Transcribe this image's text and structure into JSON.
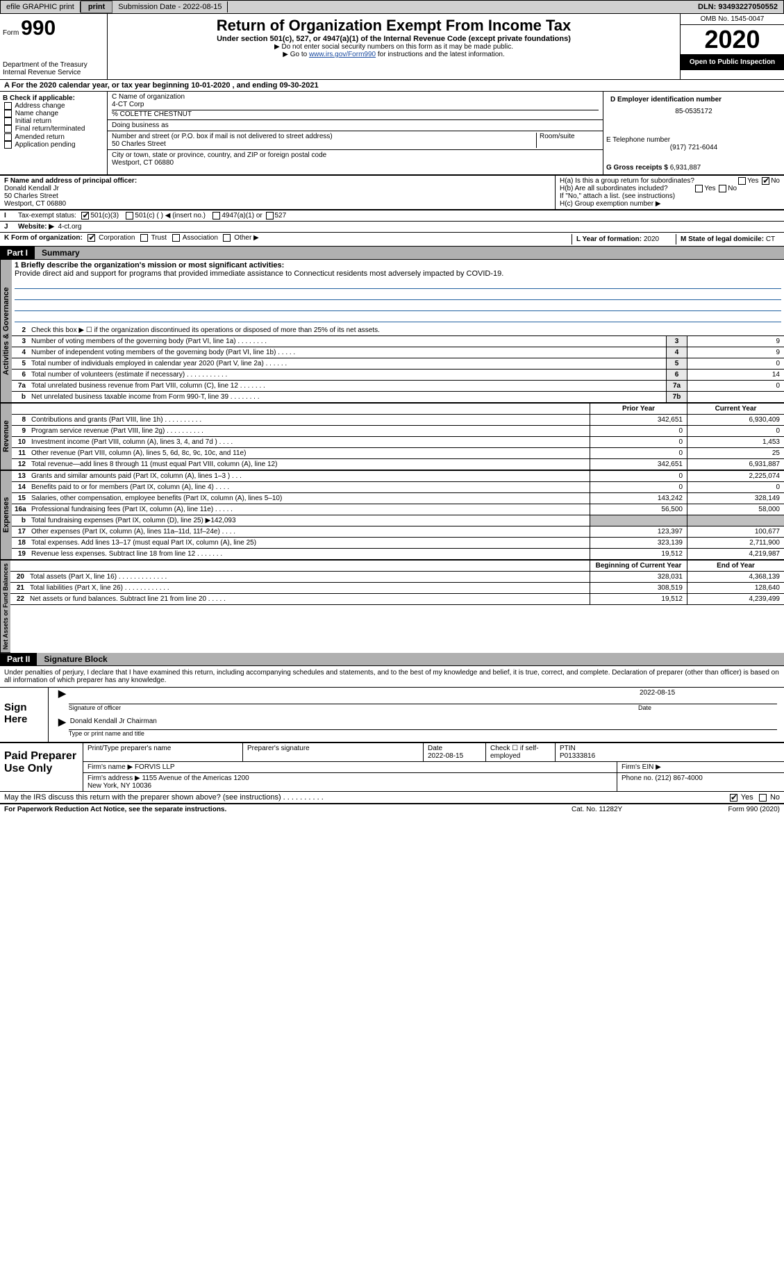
{
  "topbar": {
    "efile": "efile GRAPHIC print",
    "submission": "Submission Date - 2022-08-15",
    "dln": "DLN: 93493227050552"
  },
  "header": {
    "form_label": "Form",
    "form_num": "990",
    "dept": "Department of the Treasury\nInternal Revenue Service",
    "title": "Return of Organization Exempt From Income Tax",
    "subtitle": "Under section 501(c), 527, or 4947(a)(1) of the Internal Revenue Code (except private foundations)",
    "note1": "▶ Do not enter social security numbers on this form as it may be made public.",
    "note2_pre": "▶ Go to ",
    "note2_link": "www.irs.gov/Form990",
    "note2_post": " for instructions and the latest information.",
    "omb": "OMB No. 1545-0047",
    "year": "2020",
    "open": "Open to Public Inspection"
  },
  "section_a": "A For the 2020 calendar year, or tax year beginning 10-01-2020    , and ending 09-30-2021",
  "box_b": {
    "label": "B Check if applicable:",
    "opts": [
      "Address change",
      "Name change",
      "Initial return",
      "Final return/terminated",
      "Amended return",
      "Application pending"
    ]
  },
  "box_c": {
    "name_lbl": "C Name of organization",
    "name": "4-CT Corp",
    "care_of": "% COLETTE CHESTNUT",
    "dba_lbl": "Doing business as",
    "addr_lbl": "Number and street (or P.O. box if mail is not delivered to street address)",
    "addr": "50 Charles Street",
    "room_lbl": "Room/suite",
    "city_lbl": "City or town, state or province, country, and ZIP or foreign postal code",
    "city": "Westport, CT  06880"
  },
  "box_d": {
    "lbl": "D Employer identification number",
    "val": "85-0535172"
  },
  "box_e": {
    "lbl": "E Telephone number",
    "val": "(917) 721-6044"
  },
  "box_g": {
    "lbl": "G Gross receipts $ ",
    "val": "6,931,887"
  },
  "box_f": {
    "lbl": "F Name and address of principal officer:",
    "name": "Donald Kendall Jr",
    "addr1": "50 Charles Street",
    "addr2": "Westport, CT  06880"
  },
  "box_h": {
    "ha": "H(a)  Is this a group return for subordinates?",
    "hb": "H(b)  Are all subordinates included?",
    "hb_note": "If \"No,\" attach a list. (see instructions)",
    "hc": "H(c)  Group exemption number ▶"
  },
  "tax_status": {
    "lbl": "Tax-exempt status:",
    "o1": "501(c)(3)",
    "o2": "501(c) (  ) ◀ (insert no.)",
    "o3": "4947(a)(1) or",
    "o4": "527"
  },
  "website": {
    "lbl": "Website: ▶",
    "val": "4-ct.org"
  },
  "korg": {
    "lbl": "K Form of organization:",
    "o1": "Corporation",
    "o2": "Trust",
    "o3": "Association",
    "o4": "Other ▶"
  },
  "box_l": {
    "lbl": "L Year of formation: ",
    "val": "2020"
  },
  "box_m": {
    "lbl": "M State of legal domicile: ",
    "val": "CT"
  },
  "part1": {
    "num": "Part I",
    "title": "Summary"
  },
  "mission": {
    "q": "1  Briefly describe the organization's mission or most significant activities:",
    "a": "Provide direct aid and support for programs that provided immediate assistance to Connecticut residents most adversely impacted by COVID-19."
  },
  "lines_gov": [
    {
      "n": "2",
      "t": "Check this box ▶ ☐  if the organization discontinued its operations or disposed of more than 25% of its net assets.",
      "box": "",
      "p": "",
      "c": ""
    },
    {
      "n": "3",
      "t": "Number of voting members of the governing body (Part VI, line 1a)  .    .    .    .    .    .    .    .",
      "box": "3",
      "p": "",
      "c": "9"
    },
    {
      "n": "4",
      "t": "Number of independent voting members of the governing body (Part VI, line 1b)  .    .    .    .    .",
      "box": "4",
      "p": "",
      "c": "9"
    },
    {
      "n": "5",
      "t": "Total number of individuals employed in calendar year 2020 (Part V, line 2a)  .    .    .    .    .    .",
      "box": "5",
      "p": "",
      "c": "0"
    },
    {
      "n": "6",
      "t": "Total number of volunteers (estimate if necessary)  .    .    .    .    .    .    .    .    .    .    .",
      "box": "6",
      "p": "",
      "c": "14"
    },
    {
      "n": "7a",
      "t": "Total unrelated business revenue from Part VIII, column (C), line 12  .    .    .    .    .    .    .",
      "box": "7a",
      "p": "",
      "c": "0"
    },
    {
      "n": "b",
      "t": "Net unrelated business taxable income from Form 990-T, line 39  .    .    .    .    .    .    .    .",
      "box": "7b",
      "p": "",
      "c": ""
    }
  ],
  "col_hdrs": {
    "prior": "Prior Year",
    "curr": "Current Year"
  },
  "lines_rev": [
    {
      "n": "8",
      "t": "Contributions and grants (Part VIII, line 1h)  .    .    .    .    .    .    .    .    .    .",
      "p": "342,651",
      "c": "6,930,409"
    },
    {
      "n": "9",
      "t": "Program service revenue (Part VIII, line 2g)  .    .    .    .    .    .    .    .    .    .",
      "p": "0",
      "c": "0"
    },
    {
      "n": "10",
      "t": "Investment income (Part VIII, column (A), lines 3, 4, and 7d )  .    .    .    .",
      "p": "0",
      "c": "1,453"
    },
    {
      "n": "11",
      "t": "Other revenue (Part VIII, column (A), lines 5, 6d, 8c, 9c, 10c, and 11e)",
      "p": "0",
      "c": "25"
    },
    {
      "n": "12",
      "t": "Total revenue—add lines 8 through 11 (must equal Part VIII, column (A), line 12)",
      "p": "342,651",
      "c": "6,931,887"
    }
  ],
  "lines_exp": [
    {
      "n": "13",
      "t": "Grants and similar amounts paid (Part IX, column (A), lines 1–3 )  .    .    .",
      "p": "0",
      "c": "2,225,074"
    },
    {
      "n": "14",
      "t": "Benefits paid to or for members (Part IX, column (A), line 4)  .    .    .    .",
      "p": "0",
      "c": "0"
    },
    {
      "n": "15",
      "t": "Salaries, other compensation, employee benefits (Part IX, column (A), lines 5–10)",
      "p": "143,242",
      "c": "328,149"
    },
    {
      "n": "16a",
      "t": "Professional fundraising fees (Part IX, column (A), line 11e)  .    .    .    .    .",
      "p": "56,500",
      "c": "58,000"
    },
    {
      "n": "b",
      "t": "Total fundraising expenses (Part IX, column (D), line 25) ▶142,093",
      "p": "shaded",
      "c": "shaded"
    },
    {
      "n": "17",
      "t": "Other expenses (Part IX, column (A), lines 11a–11d, 11f–24e)  .    .    .    .",
      "p": "123,397",
      "c": "100,677"
    },
    {
      "n": "18",
      "t": "Total expenses. Add lines 13–17 (must equal Part IX, column (A), line 25)",
      "p": "323,139",
      "c": "2,711,900"
    },
    {
      "n": "19",
      "t": "Revenue less expenses. Subtract line 18 from line 12  .    .    .    .    .    .    .",
      "p": "19,512",
      "c": "4,219,987"
    }
  ],
  "col_hdrs2": {
    "prior": "Beginning of Current Year",
    "curr": "End of Year"
  },
  "lines_net": [
    {
      "n": "20",
      "t": "Total assets (Part X, line 16)  .    .    .    .    .    .    .    .    .    .    .    .    .",
      "p": "328,031",
      "c": "4,368,139"
    },
    {
      "n": "21",
      "t": "Total liabilities (Part X, line 26)  .    .    .    .    .    .    .    .    .    .    .    .",
      "p": "308,519",
      "c": "128,640"
    },
    {
      "n": "22",
      "t": "Net assets or fund balances. Subtract line 21 from line 20  .    .    .    .    .",
      "p": "19,512",
      "c": "4,239,499"
    }
  ],
  "part2": {
    "num": "Part II",
    "title": "Signature Block"
  },
  "perjury": "Under penalties of perjury, I declare that I have examined this return, including accompanying schedules and statements, and to the best of my knowledge and belief, it is true, correct, and complete. Declaration of preparer (other than officer) is based on all information of which preparer has any knowledge.",
  "sign": {
    "here": "Sign Here",
    "sig_lbl": "Signature of officer",
    "date_lbl": "Date",
    "date": "2022-08-15",
    "name": "Donald Kendall Jr  Chairman",
    "name_lbl": "Type or print name and title"
  },
  "paid": {
    "title": "Paid Preparer Use Only",
    "h1": "Print/Type preparer's name",
    "h2": "Preparer's signature",
    "h3": "Date",
    "date": "2022-08-15",
    "h4": "Check ☐ if self-employed",
    "h5": "PTIN",
    "ptin": "P01333816",
    "firm_lbl": "Firm's name    ▶",
    "firm": "FORVIS LLP",
    "ein_lbl": "Firm's EIN ▶",
    "addr_lbl": "Firm's address ▶",
    "addr": "1155 Avenue of the Americas 1200\nNew York, NY  10036",
    "phone_lbl": "Phone no. ",
    "phone": "(212) 867-4000"
  },
  "discuss": "May the IRS discuss this return with the preparer shown above? (see instructions)  .    .    .    .    .    .    .    .    .    .",
  "footer": {
    "left": "For Paperwork Reduction Act Notice, see the separate instructions.",
    "mid": "Cat. No. 11282Y",
    "right": "Form 990 (2020)"
  },
  "yes": "Yes",
  "no": "No",
  "vert": {
    "gov": "Activities & Governance",
    "rev": "Revenue",
    "exp": "Expenses",
    "net": "Net Assets or Fund Balances"
  }
}
